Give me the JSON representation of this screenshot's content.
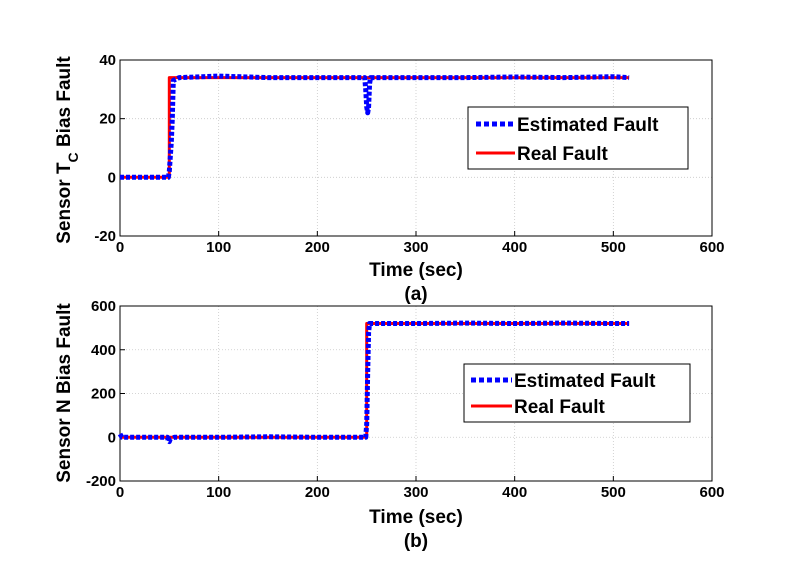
{
  "chart_data": [
    {
      "type": "line",
      "caption": "(a)",
      "xlabel": "Time (sec)",
      "ylabel_parts": [
        "Sensor T",
        "C",
        " Bias Fault"
      ],
      "xlim": [
        0,
        600
      ],
      "ylim": [
        -20,
        40
      ],
      "xticks": [
        0,
        100,
        200,
        300,
        400,
        500,
        600
      ],
      "yticks": [
        -20,
        0,
        20,
        40
      ],
      "grid": true,
      "legend_position": "right",
      "series": [
        {
          "name": "Estimated Fault",
          "color": "#0000ff",
          "style": "dotted",
          "x": [
            0,
            49,
            50,
            52,
            53,
            54,
            60,
            100,
            150,
            200,
            248,
            249,
            250,
            251,
            252,
            253,
            254,
            300,
            350,
            400,
            450,
            500,
            516
          ],
          "y": [
            0,
            0,
            2,
            12,
            20,
            33,
            34,
            34.5,
            34,
            34,
            34,
            30,
            24,
            22,
            24,
            32,
            34,
            34,
            34,
            34.2,
            34,
            34.3,
            34
          ]
        },
        {
          "name": "Real Fault",
          "color": "#ff0000",
          "style": "solid",
          "x": [
            0,
            50,
            50,
            516
          ],
          "y": [
            0,
            0,
            34,
            34
          ]
        }
      ]
    },
    {
      "type": "line",
      "caption": "(b)",
      "xlabel": "Time (sec)",
      "ylabel_parts": [
        "Sensor N Bias Fault"
      ],
      "xlim": [
        0,
        600
      ],
      "ylim": [
        -200,
        600
      ],
      "xticks": [
        0,
        100,
        200,
        300,
        400,
        500,
        600
      ],
      "yticks": [
        -200,
        0,
        200,
        400,
        600
      ],
      "grid": true,
      "legend_position": "right",
      "series": [
        {
          "name": "Estimated Fault",
          "color": "#0000ff",
          "style": "dotted",
          "x": [
            0,
            2,
            5,
            48,
            49,
            50,
            51,
            55,
            100,
            150,
            200,
            249,
            250,
            251,
            252,
            253,
            300,
            350,
            400,
            450,
            500,
            516
          ],
          "y": [
            15,
            0,
            0,
            0,
            -15,
            -20,
            -8,
            0,
            0,
            2,
            0,
            0,
            60,
            300,
            480,
            520,
            520,
            522,
            520,
            522,
            520,
            520
          ]
        },
        {
          "name": "Real Fault",
          "color": "#ff0000",
          "style": "solid",
          "x": [
            0,
            250,
            250,
            516
          ],
          "y": [
            0,
            0,
            520,
            520
          ]
        }
      ]
    }
  ]
}
